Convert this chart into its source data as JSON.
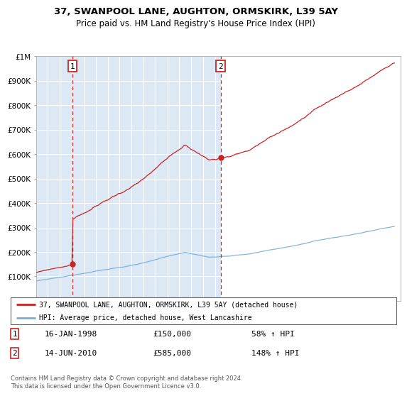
{
  "title": "37, SWANPOOL LANE, AUGHTON, ORMSKIRK, L39 5AY",
  "subtitle": "Price paid vs. HM Land Registry's House Price Index (HPI)",
  "legend_line1": "37, SWANPOOL LANE, AUGHTON, ORMSKIRK, L39 5AY (detached house)",
  "legend_line2": "HPI: Average price, detached house, West Lancashire",
  "transaction1_label": "1",
  "transaction1_date": "16-JAN-1998",
  "transaction1_price": "£150,000",
  "transaction1_hpi": "58% ↑ HPI",
  "transaction2_label": "2",
  "transaction2_date": "14-JUN-2010",
  "transaction2_price": "£585,000",
  "transaction2_hpi": "148% ↑ HPI",
  "footnote": "Contains HM Land Registry data © Crown copyright and database right 2024.\nThis data is licensed under the Open Government Licence v3.0.",
  "hpi_color": "#7aadd4",
  "price_color": "#cc2222",
  "dashed_line_color": "#cc2222",
  "background_color_left": "#dce9f5",
  "background_color_right": "#ffffff",
  "ylim": [
    0,
    1000000
  ],
  "transaction1_x": 1998.04,
  "transaction1_y": 150000,
  "transaction2_x": 2010.45,
  "transaction2_y": 585000,
  "xmin": 1995,
  "xmax": 2025
}
